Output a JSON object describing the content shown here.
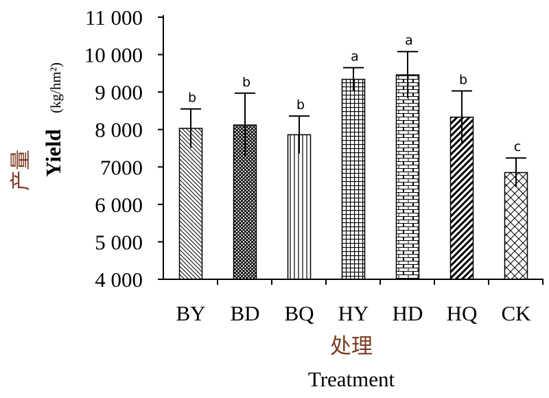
{
  "chart_data": {
    "type": "bar",
    "title": "",
    "ylabel_cn": "产量",
    "ylabel_en": "Yield",
    "ylabel_unit": "(kg/hm²)",
    "xlabel_cn": "处理",
    "xlabel_en": "Treatment",
    "ylim": [
      4000,
      11000
    ],
    "yticks": [
      4000,
      5000,
      6000,
      7000,
      8000,
      9000,
      10000,
      11000
    ],
    "ytick_labels": [
      "4 000",
      "5 000",
      "6 000",
      "7000",
      "8 000",
      "9 000",
      "10 000",
      "11 000"
    ],
    "categories": [
      "BY",
      "BD",
      "BQ",
      "HY",
      "HD",
      "HQ",
      "CK"
    ],
    "values": [
      8030,
      8120,
      7860,
      9340,
      9460,
      8330,
      6850
    ],
    "errors": [
      520,
      850,
      500,
      310,
      620,
      700,
      390
    ],
    "significance": [
      "b",
      "b",
      "b",
      "a",
      "a",
      "b",
      "c"
    ],
    "patterns": [
      "diag-back-thin",
      "crosshatch-dense",
      "vertical-lines",
      "grid-square",
      "brick",
      "diag-thick",
      "diamond-cross"
    ],
    "grid": false,
    "legend": "none"
  }
}
